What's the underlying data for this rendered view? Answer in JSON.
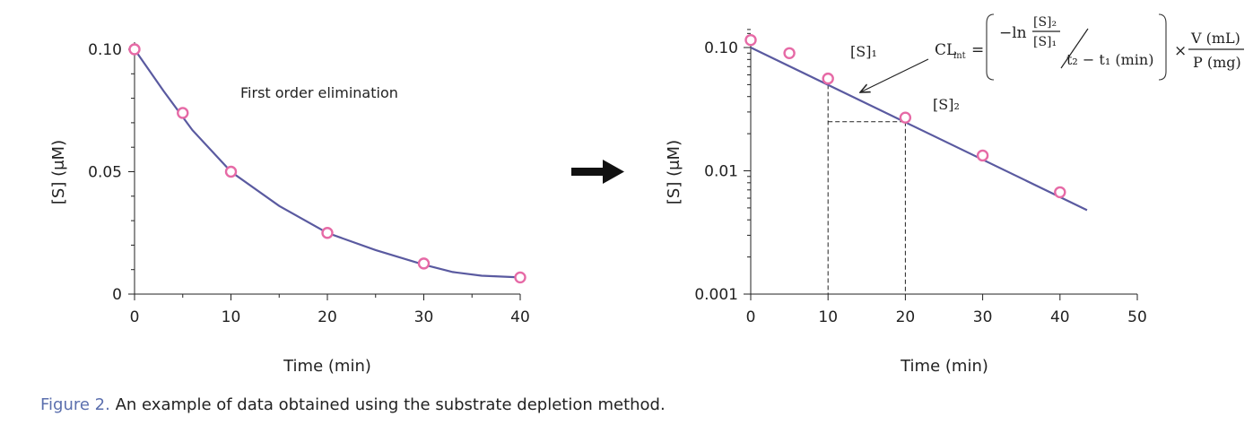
{
  "figure": {
    "caption_label": "Figure 2.",
    "caption_text": "An example of data obtained using the substrate depletion method."
  },
  "chart_data": [
    {
      "type": "line",
      "subtype": "linear-scale",
      "annotation": "First order elimination",
      "xlabel": "Time (min)",
      "ylabel": "[S] (μM)",
      "xlim": [
        0,
        40
      ],
      "ylim": [
        0,
        0.1
      ],
      "xticks": [
        "0",
        "10",
        "20",
        "30",
        "40"
      ],
      "yticks": [
        "0",
        "0.05",
        "0.10"
      ],
      "points": {
        "x": [
          0,
          5,
          10,
          20,
          30,
          40
        ],
        "y": [
          0.1,
          0.074,
          0.05,
          0.025,
          0.0125,
          0.0068
        ]
      },
      "fit": {
        "x": [
          0,
          3,
          6,
          10,
          15,
          20,
          25,
          30,
          33,
          36,
          40
        ],
        "y": [
          0.1,
          0.083,
          0.067,
          0.05,
          0.036,
          0.025,
          0.018,
          0.012,
          0.009,
          0.0075,
          0.0068
        ]
      },
      "colors": {
        "line": "#5a5aa0",
        "marker": "#e66aa6"
      }
    },
    {
      "type": "line",
      "subtype": "log-scale",
      "xlabel": "Time (min)",
      "ylabel": "[S] (μM)",
      "xlim": [
        0,
        50
      ],
      "ylim": [
        0.001,
        0.1
      ],
      "xticks": [
        "0",
        "10",
        "20",
        "30",
        "40",
        "50"
      ],
      "yticks": [
        "0.001",
        "0.01",
        "0.10"
      ],
      "points": {
        "x": [
          0,
          5,
          10,
          20,
          30,
          40
        ],
        "y": [
          0.115,
          0.09,
          0.056,
          0.027,
          0.0133,
          0.0067
        ]
      },
      "fit": {
        "x": [
          0,
          43.5
        ],
        "y": [
          0.1,
          0.0048
        ]
      },
      "guides": [
        {
          "x": 10,
          "y": 0.05
        },
        {
          "x": 20,
          "y": 0.025
        }
      ],
      "annotations": {
        "s1": "[S]₁",
        "s2": "[S]₂"
      },
      "colors": {
        "line": "#5a5aa0",
        "marker": "#e66aa6"
      }
    }
  ],
  "formula": {
    "lhs": "CL",
    "lhs_sub": "int",
    "equals": "=",
    "neg_ln": "−ln",
    "frac_num": "[S]₂",
    "frac_den": "[S]₁",
    "denominator": "t₂ − t₁ (min)",
    "times": "×",
    "vol": "V (mL)",
    "mass": "P (mg)"
  },
  "arrow_icon": "right-arrow-icon"
}
